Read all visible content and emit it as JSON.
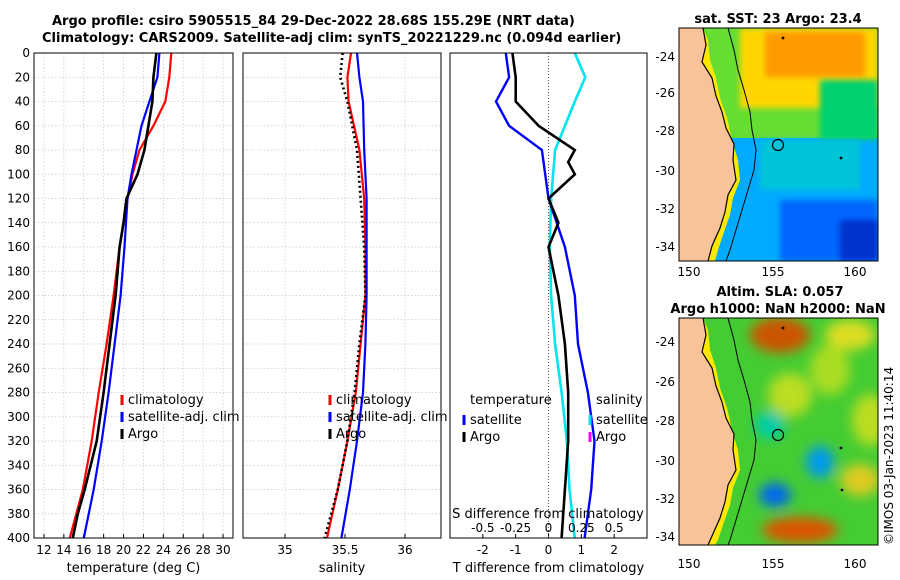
{
  "header": {
    "line1": "Argo profile: csiro 5905515_84 29-Dec-2022 28.68S 155.29E (NRT data)",
    "line2": "Climatology: CARS2009. Satellite-adj clim: synTS_20221229.nc (0.094d earlier)"
  },
  "colors": {
    "climatology": "#ff0000",
    "satellite": "#0000ff",
    "argo": "#000000",
    "sal_diff": "#00e5ee",
    "land": "#f9c39a"
  },
  "chart_data": [
    {
      "id": "temperature",
      "type": "line",
      "xlabel": "temperature (deg C)",
      "ylabel": "",
      "xlim": [
        11,
        31
      ],
      "ylim": [
        400,
        0
      ],
      "xticks": [
        12,
        14,
        16,
        18,
        20,
        22,
        24,
        26,
        28,
        30
      ],
      "yticks": [
        0,
        20,
        40,
        60,
        80,
        100,
        120,
        140,
        160,
        180,
        200,
        220,
        240,
        260,
        280,
        300,
        320,
        340,
        360,
        380,
        400
      ],
      "grid": true,
      "legend": [
        "climatology",
        "satellite-adj. clim",
        "Argo"
      ],
      "series": [
        {
          "name": "climatology",
          "depth": [
            0,
            20,
            40,
            60,
            80,
            100,
            120,
            160,
            200,
            240,
            280,
            320,
            360,
            400
          ],
          "values": [
            24.8,
            24.6,
            24.2,
            23.0,
            21.6,
            20.9,
            20.4,
            19.6,
            19.0,
            18.3,
            17.5,
            16.8,
            15.9,
            14.6
          ]
        },
        {
          "name": "satellite-adj. clim",
          "depth": [
            0,
            20,
            40,
            60,
            80,
            100,
            120,
            160,
            200,
            240,
            280,
            320,
            360,
            400
          ],
          "values": [
            23.6,
            23.4,
            22.6,
            21.8,
            21.3,
            20.8,
            20.4,
            20.1,
            19.7,
            19.1,
            18.5,
            17.8,
            17.0,
            16.0
          ]
        },
        {
          "name": "Argo",
          "depth": [
            0,
            20,
            40,
            60,
            80,
            100,
            120,
            140,
            160,
            200,
            240,
            280,
            320,
            360,
            380,
            400
          ],
          "values": [
            23.3,
            23.0,
            22.9,
            22.5,
            22.1,
            21.4,
            20.3,
            20.0,
            19.6,
            19.2,
            18.6,
            18.0,
            17.3,
            16.1,
            15.4,
            14.9
          ]
        }
      ]
    },
    {
      "id": "salinity",
      "type": "line",
      "xlabel": "salinity",
      "ylabel": "",
      "xlim": [
        34.65,
        36.3
      ],
      "ylim": [
        400,
        0
      ],
      "xticks": [
        35,
        35.5,
        36
      ],
      "xticklabels": [
        "35",
        "35.5",
        "36"
      ],
      "grid": true,
      "legend": [
        "climatology",
        "satellite-adj. clim",
        "Argo"
      ],
      "series": [
        {
          "name": "climatology",
          "depth": [
            0,
            20,
            40,
            80,
            120,
            160,
            200,
            240,
            280,
            320,
            360,
            400
          ],
          "values": [
            35.55,
            35.52,
            35.53,
            35.62,
            35.66,
            35.67,
            35.67,
            35.63,
            35.59,
            35.52,
            35.44,
            35.35
          ]
        },
        {
          "name": "satellite-adj. clim",
          "depth": [
            0,
            20,
            40,
            80,
            120,
            160,
            200,
            240,
            280,
            320,
            360,
            400
          ],
          "values": [
            35.6,
            35.62,
            35.65,
            35.66,
            35.68,
            35.68,
            35.68,
            35.67,
            35.65,
            35.6,
            35.54,
            35.47
          ]
        },
        {
          "name": "Argo",
          "depth": [
            0,
            20,
            40,
            80,
            120,
            160,
            200,
            240,
            280,
            320,
            360,
            400
          ],
          "values": [
            35.48,
            35.46,
            35.52,
            35.6,
            35.63,
            35.66,
            35.67,
            35.62,
            35.58,
            35.52,
            35.44,
            35.33
          ]
        }
      ]
    },
    {
      "id": "differences",
      "type": "line",
      "xlabel": "T difference from climatology",
      "xlabel_top": "S difference from climatology",
      "xlim": [
        -3,
        3
      ],
      "ylim": [
        400,
        0
      ],
      "xticks": [
        -2,
        -1,
        0,
        1,
        2
      ],
      "xticklabels": [
        "-2",
        "-1",
        "0",
        "1",
        "2"
      ],
      "top_ticklabels": [
        "-0.5",
        "-0.25",
        "0",
        "0.25",
        "0.5"
      ],
      "legend_left_title": "temperature",
      "legend_right_title": "salinity",
      "legend_left": [
        "satellite",
        "Argo"
      ],
      "legend_right": [
        "satellite",
        "Argo"
      ],
      "series": [
        {
          "name": "T satellite",
          "depth": [
            0,
            20,
            40,
            60,
            80,
            100,
            120,
            160,
            200,
            240,
            280,
            320,
            360,
            400
          ],
          "values": [
            -1.3,
            -1.2,
            -1.6,
            -1.2,
            -0.2,
            -0.1,
            0.0,
            0.5,
            0.8,
            0.9,
            1.2,
            1.4,
            1.3,
            1.1
          ]
        },
        {
          "name": "T Argo",
          "depth": [
            0,
            20,
            40,
            60,
            80,
            90,
            100,
            120,
            140,
            160,
            200,
            240,
            280,
            320,
            360,
            400
          ],
          "values": [
            -1.1,
            -1.0,
            -1.0,
            -0.3,
            0.8,
            0.6,
            0.8,
            0.0,
            0.3,
            0.0,
            0.3,
            0.5,
            0.6,
            0.6,
            0.5,
            0.4
          ]
        },
        {
          "name": "S satellite",
          "depth": [
            0,
            20,
            40,
            80,
            120,
            160,
            200,
            240,
            280,
            320,
            360,
            400
          ],
          "values": [
            0.2,
            0.28,
            0.2,
            0.05,
            0.02,
            0.01,
            0.02,
            0.05,
            0.1,
            0.14,
            0.16,
            0.2
          ]
        },
        {
          "name": "S Argo",
          "depth": [
            0,
            20,
            40,
            80,
            120,
            160,
            200,
            240,
            280,
            320,
            360,
            400
          ],
          "values": [
            0.15,
            0.13,
            0.12,
            0.06,
            0.03,
            0.03,
            0.03,
            0.05,
            0.08,
            0.1,
            0.12,
            0.15
          ]
        }
      ]
    }
  ],
  "maps": {
    "sst": {
      "title": "sat. SST: 23 Argo: 23.4",
      "lat_ticks": [
        "-24",
        "-26",
        "-28",
        "-30",
        "-32",
        "-34"
      ],
      "lon_ticks": [
        "150",
        "155",
        "160"
      ]
    },
    "sla": {
      "title1": "Altim. SLA: 0.057",
      "title2": "Argo h1000: NaN h2000: NaN",
      "lat_ticks": [
        "-24",
        "-26",
        "-28",
        "-30",
        "-32",
        "-34"
      ],
      "lon_ticks": [
        "150",
        "155",
        "160"
      ]
    }
  },
  "credit": "©IMOS 03-Jan-2023 11:40:14"
}
